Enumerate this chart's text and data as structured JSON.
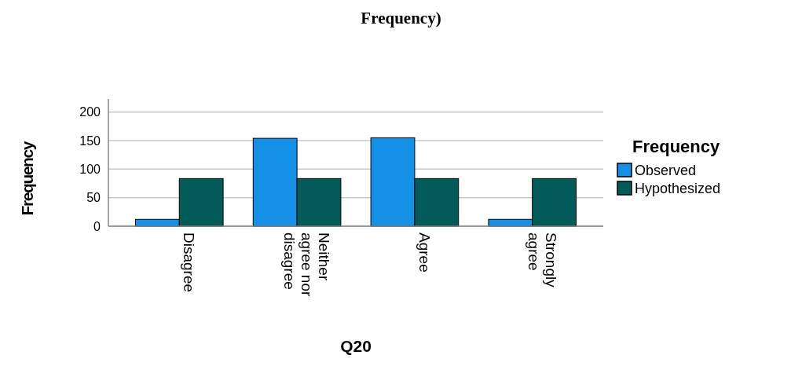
{
  "chart_data": {
    "type": "bar",
    "title": "Frequency)",
    "xlabel": "Q20",
    "ylabel": "Frequency",
    "legend_title": "Frequency",
    "categories": [
      "Disagree",
      "Neither agree nor disagree",
      "Agree",
      "Strongly agree"
    ],
    "series": [
      {
        "name": "Observed",
        "color": "#1490e6",
        "values": [
          12,
          154,
          155,
          12
        ]
      },
      {
        "name": "Hypothesized",
        "color": "#025a59",
        "values": [
          83.5,
          83.5,
          83.5,
          83.5
        ]
      }
    ],
    "ylim": [
      0,
      223
    ],
    "yticks": [
      0,
      50,
      100,
      150,
      200
    ],
    "grid": "y",
    "legend": "right"
  }
}
